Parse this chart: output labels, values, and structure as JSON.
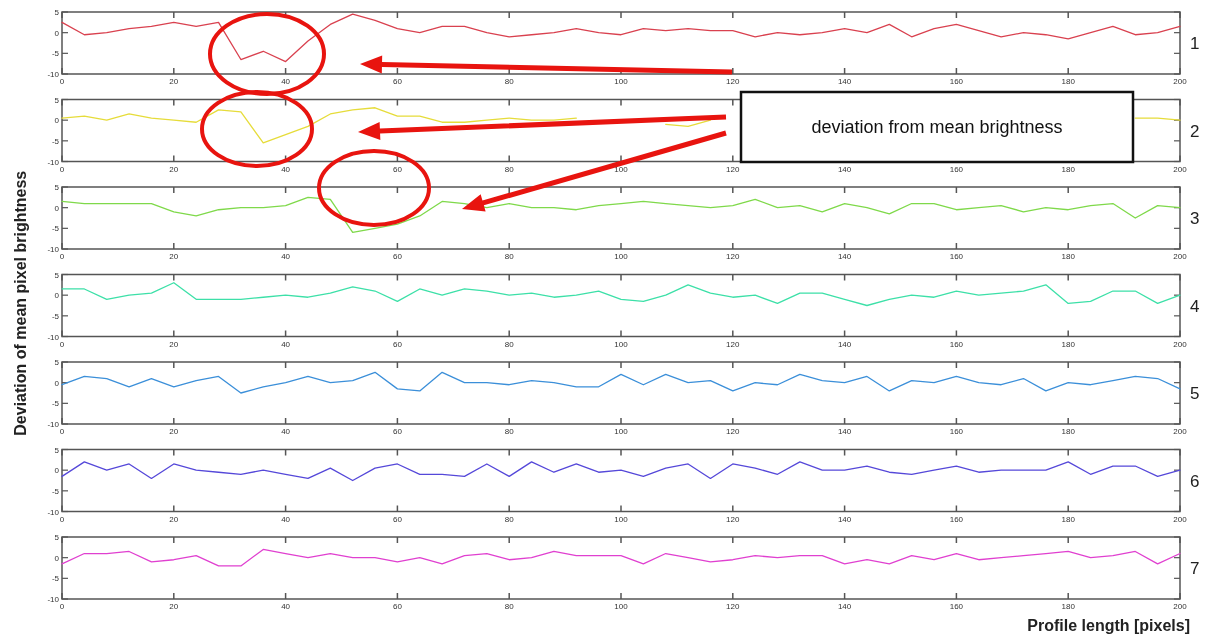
{
  "chart_data": [
    {
      "type": "line",
      "title": "1",
      "x": [
        0,
        4,
        8,
        12,
        16,
        20,
        24,
        28,
        32,
        36,
        40,
        44,
        48,
        52,
        56,
        60,
        64,
        68,
        72,
        76,
        80,
        84,
        88,
        92,
        96,
        100,
        104,
        108,
        112,
        116,
        120,
        124,
        128,
        132,
        136,
        140,
        144,
        148,
        152,
        156,
        160,
        164,
        168,
        172,
        176,
        180,
        184,
        188,
        192,
        196,
        200
      ],
      "series": [
        {
          "color": "#d9414f",
          "values": [
            2.5,
            -0.5,
            0,
            1,
            1.5,
            2.5,
            1.5,
            2.5,
            -6.5,
            -4.5,
            -7,
            -2,
            2,
            4.5,
            3,
            1,
            0,
            1.5,
            1.5,
            0,
            -1,
            -0.5,
            0,
            1,
            0,
            -0.5,
            1,
            0.5,
            1,
            0.5,
            0.5,
            -1,
            0,
            -0.5,
            0,
            1,
            0,
            2,
            -1,
            1,
            2,
            0.5,
            -1,
            0,
            -0.5,
            -1.5,
            0,
            1.5,
            -0.5,
            0,
            1.5
          ]
        }
      ],
      "xlim": [
        0,
        200
      ],
      "xticks": [
        0,
        20,
        40,
        60,
        80,
        100,
        120,
        140,
        160,
        180,
        200
      ],
      "ylim": [
        -10,
        5
      ],
      "yticks": [
        5,
        0,
        -5,
        -10
      ]
    },
    {
      "type": "line",
      "title": "2",
      "x": [
        0,
        4,
        8,
        12,
        16,
        20,
        24,
        28,
        32,
        36,
        40,
        44,
        48,
        52,
        56,
        60,
        64,
        68,
        72,
        76,
        80,
        84,
        88,
        92,
        96,
        100,
        104,
        108,
        112,
        116,
        120,
        124,
        128,
        132,
        136,
        140,
        144,
        148,
        152,
        156,
        160,
        164,
        168,
        172,
        176,
        180,
        184,
        188,
        192,
        196,
        200
      ],
      "series": [
        {
          "color": "#e6dc3a",
          "values": [
            0.5,
            1,
            0,
            1.5,
            0.5,
            0,
            -0.5,
            2.5,
            2,
            -5.5,
            -3.5,
            -1.5,
            1.5,
            2.5,
            3,
            1,
            1,
            -0.5,
            -0.5,
            0,
            0.5,
            0,
            0,
            0.5,
            null,
            null,
            null,
            -1,
            -1.5,
            0,
            null,
            null,
            null,
            null,
            null,
            null,
            null,
            null,
            null,
            null,
            null,
            null,
            null,
            null,
            null,
            null,
            null,
            null,
            0.5,
            0.5,
            0
          ]
        }
      ],
      "xlim": [
        0,
        200
      ],
      "xticks": [
        0,
        20,
        40,
        60,
        80,
        100,
        120,
        140,
        160,
        180,
        200
      ],
      "ylim": [
        -10,
        5
      ],
      "yticks": [
        5,
        0,
        -5,
        -10
      ],
      "annotations": [
        "deviation from mean brightness"
      ]
    },
    {
      "type": "line",
      "title": "3",
      "x": [
        0,
        4,
        8,
        12,
        16,
        20,
        24,
        28,
        32,
        36,
        40,
        44,
        48,
        52,
        56,
        60,
        64,
        68,
        72,
        76,
        80,
        84,
        88,
        92,
        96,
        100,
        104,
        108,
        112,
        116,
        120,
        124,
        128,
        132,
        136,
        140,
        144,
        148,
        152,
        156,
        160,
        164,
        168,
        172,
        176,
        180,
        184,
        188,
        192,
        196,
        200
      ],
      "series": [
        {
          "color": "#7fd94a",
          "values": [
            1.5,
            1,
            1,
            1,
            1,
            -1,
            -2,
            -0.5,
            0,
            0,
            0.5,
            2.5,
            2,
            -6,
            -5,
            -4,
            -2,
            1.5,
            1,
            0,
            1,
            0,
            0,
            -0.5,
            0.5,
            1,
            1.5,
            1,
            0.5,
            0,
            0.5,
            2,
            0,
            0.5,
            -1,
            1,
            0,
            -1.5,
            1,
            1,
            -0.5,
            0,
            0.5,
            -1,
            0,
            -0.5,
            0.5,
            1,
            -2.5,
            0.5,
            0
          ]
        }
      ],
      "xlim": [
        0,
        200
      ],
      "xticks": [
        0,
        20,
        40,
        60,
        80,
        100,
        120,
        140,
        160,
        180,
        200
      ],
      "ylim": [
        -10,
        5
      ],
      "yticks": [
        5,
        0,
        -5,
        -10
      ]
    },
    {
      "type": "line",
      "title": "4",
      "ylabel": "Deviation of mean pixel brightness",
      "x": [
        0,
        4,
        8,
        12,
        16,
        20,
        24,
        28,
        32,
        36,
        40,
        44,
        48,
        52,
        56,
        60,
        64,
        68,
        72,
        76,
        80,
        84,
        88,
        92,
        96,
        100,
        104,
        108,
        112,
        116,
        120,
        124,
        128,
        132,
        136,
        140,
        144,
        148,
        152,
        156,
        160,
        164,
        168,
        172,
        176,
        180,
        184,
        188,
        192,
        196,
        200
      ],
      "series": [
        {
          "color": "#3de0a8",
          "values": [
            1.5,
            1.5,
            -1,
            0,
            0.5,
            3,
            -1,
            -1,
            -1,
            -0.5,
            0,
            -0.5,
            0.5,
            2,
            1,
            -1.5,
            1.5,
            0,
            1.5,
            1,
            0,
            0.5,
            -0.5,
            0,
            1,
            -1,
            -1.5,
            0,
            2.5,
            0.5,
            -0.5,
            0,
            -2,
            0.5,
            0.5,
            -1,
            -2.5,
            -1,
            0,
            -0.5,
            1,
            0,
            0.5,
            1,
            2.5,
            -2,
            -1.5,
            1,
            1,
            -2,
            0
          ]
        }
      ],
      "xlim": [
        0,
        200
      ],
      "xticks": [
        0,
        20,
        40,
        60,
        80,
        100,
        120,
        140,
        160,
        180,
        200
      ],
      "ylim": [
        -10,
        5
      ],
      "yticks": [
        5,
        0,
        -5,
        -10
      ]
    },
    {
      "type": "line",
      "title": "5",
      "x": [
        0,
        4,
        8,
        12,
        16,
        20,
        24,
        28,
        32,
        36,
        40,
        44,
        48,
        52,
        56,
        60,
        64,
        68,
        72,
        76,
        80,
        84,
        88,
        92,
        96,
        100,
        104,
        108,
        112,
        116,
        120,
        124,
        128,
        132,
        136,
        140,
        144,
        148,
        152,
        156,
        160,
        164,
        168,
        172,
        176,
        180,
        184,
        188,
        192,
        196,
        200
      ],
      "series": [
        {
          "color": "#3b8fd9",
          "values": [
            -0.5,
            1.5,
            1,
            -1,
            1,
            -1,
            0.5,
            1.5,
            -2.5,
            -1,
            0,
            1.5,
            0,
            0.5,
            2.5,
            -1.5,
            -2,
            2.5,
            0,
            0,
            -0.5,
            0.5,
            0,
            -1,
            -1,
            2,
            -0.5,
            2,
            0,
            0.5,
            -2,
            0,
            -0.5,
            2,
            0.5,
            0,
            1.5,
            -2,
            0.5,
            0,
            1.5,
            0,
            -0.5,
            1,
            -2,
            0,
            -0.5,
            0.5,
            1.5,
            1,
            -1.5
          ]
        }
      ],
      "xlim": [
        0,
        200
      ],
      "xticks": [
        0,
        20,
        40,
        60,
        80,
        100,
        120,
        140,
        160,
        180,
        200
      ],
      "ylim": [
        -10,
        5
      ],
      "yticks": [
        5,
        0,
        -5,
        -10
      ]
    },
    {
      "type": "line",
      "title": "6",
      "x": [
        0,
        4,
        8,
        12,
        16,
        20,
        24,
        28,
        32,
        36,
        40,
        44,
        48,
        52,
        56,
        60,
        64,
        68,
        72,
        76,
        80,
        84,
        88,
        92,
        96,
        100,
        104,
        108,
        112,
        116,
        120,
        124,
        128,
        132,
        136,
        140,
        144,
        148,
        152,
        156,
        160,
        164,
        168,
        172,
        176,
        180,
        184,
        188,
        192,
        196,
        200
      ],
      "series": [
        {
          "color": "#5548d9",
          "values": [
            -1.5,
            2,
            0,
            1.5,
            -2,
            1.5,
            0,
            -0.5,
            -1,
            0,
            -1,
            -2,
            0.5,
            -2.5,
            0.5,
            1.5,
            -1,
            -1,
            -1.5,
            1.5,
            -1.5,
            2,
            -0.5,
            1.5,
            -0.5,
            0,
            -1.5,
            0.5,
            1.5,
            -2,
            1.5,
            0.5,
            -1,
            2,
            0,
            0,
            1,
            -0.5,
            -1,
            0,
            1,
            -0.5,
            0,
            0,
            0,
            2,
            -1,
            1,
            1,
            -1.5,
            0
          ]
        }
      ],
      "xlim": [
        0,
        200
      ],
      "xticks": [
        0,
        20,
        40,
        60,
        80,
        100,
        120,
        140,
        160,
        180,
        200
      ],
      "ylim": [
        -10,
        5
      ],
      "yticks": [
        5,
        0,
        -5,
        -10
      ]
    },
    {
      "type": "line",
      "title": "7",
      "xlabel": "Profile length [pixels]",
      "x": [
        0,
        4,
        8,
        12,
        16,
        20,
        24,
        28,
        32,
        36,
        40,
        44,
        48,
        52,
        56,
        60,
        64,
        68,
        72,
        76,
        80,
        84,
        88,
        92,
        96,
        100,
        104,
        108,
        112,
        116,
        120,
        124,
        128,
        132,
        136,
        140,
        144,
        148,
        152,
        156,
        160,
        164,
        168,
        172,
        176,
        180,
        184,
        188,
        192,
        196,
        200
      ],
      "series": [
        {
          "color": "#e040d0",
          "values": [
            -1.5,
            1,
            1,
            1.5,
            -1,
            -0.5,
            0.5,
            -2,
            -2,
            2,
            1,
            0,
            1,
            0,
            0,
            -1,
            0,
            -1.5,
            0.5,
            1,
            -0.5,
            0,
            1.5,
            0.5,
            0.5,
            0.5,
            -1.5,
            1,
            0,
            -1,
            -0.5,
            0.5,
            0,
            0.5,
            0.5,
            -1.5,
            -0.5,
            -1.5,
            0.5,
            -0.5,
            1,
            -0.5,
            0,
            0.5,
            1,
            1.5,
            0,
            0.5,
            1.5,
            -1.5,
            1
          ]
        }
      ],
      "xlim": [
        0,
        200
      ],
      "xticks": [
        0,
        20,
        40,
        60,
        80,
        100,
        120,
        140,
        160,
        180,
        200
      ],
      "ylim": [
        -10,
        5
      ],
      "yticks": [
        5,
        0,
        -5,
        -10
      ]
    }
  ]
}
